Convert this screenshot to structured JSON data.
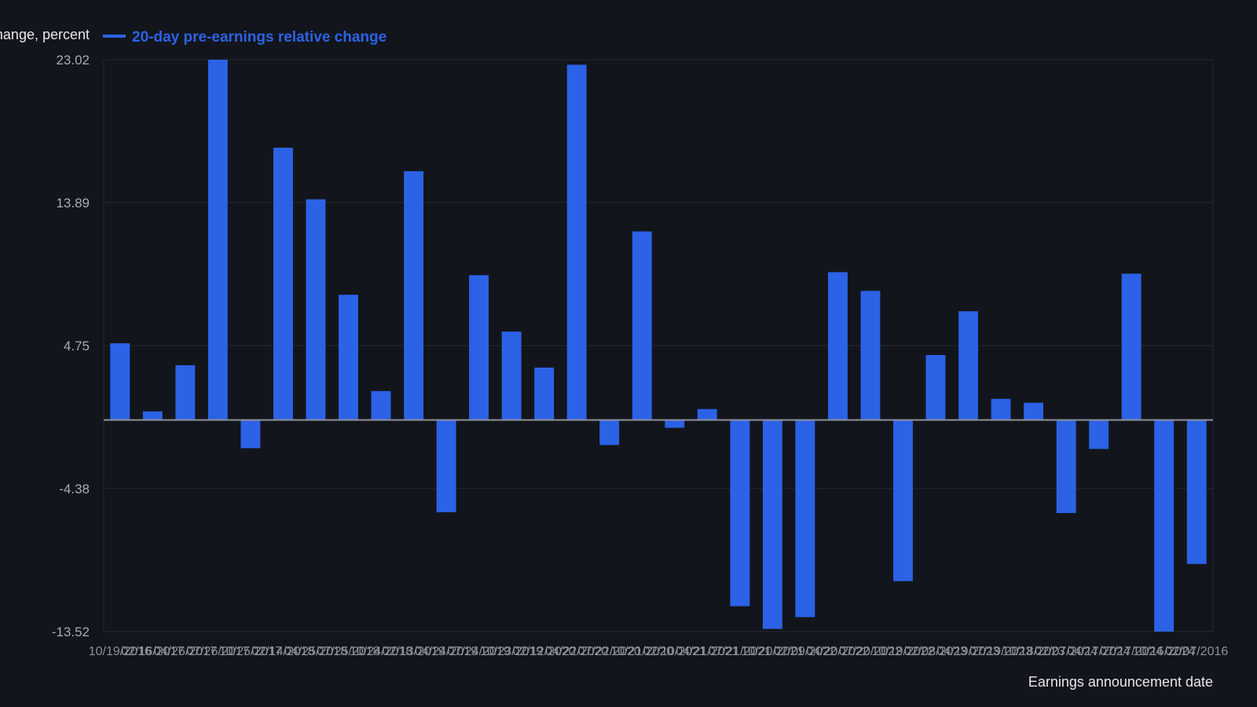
{
  "chart_data": {
    "type": "bar",
    "ylabel": "Change, percent",
    "xlabel": "Earnings announcement date",
    "y_ticks": [
      "23.02",
      "13.89",
      "4.75",
      "-4.38",
      "-13.52"
    ],
    "ylim": [
      -13.52,
      23.02
    ],
    "legend_position": "top-left",
    "grid": true,
    "series": [
      {
        "name": "20-day pre-earnings relative change",
        "color": "#2c62e6",
        "values": [
          4.9,
          0.55,
          3.5,
          23.02,
          -1.8,
          17.4,
          14.1,
          8.0,
          1.85,
          15.9,
          -5.9,
          9.25,
          5.65,
          3.35,
          22.7,
          -1.6,
          12.05,
          -0.5,
          0.7,
          -11.9,
          -13.35,
          -12.6,
          9.45,
          8.25,
          -10.3,
          4.15,
          6.95,
          1.35,
          1.1,
          -5.95,
          -1.85,
          9.35,
          -13.52,
          -9.2
        ]
      }
    ],
    "x_tick_labels": [
      "10/19/2016",
      "02/16/2017",
      "04/26/2017",
      "07/26/2017",
      "10/25/2017",
      "02/14/2018",
      "04/25/2018",
      "07/25/2018",
      "10/24/2018",
      "02/13/2019",
      "04/24/2019",
      "07/24/2019",
      "10/23/2019",
      "02/12/2020",
      "04/22/2020",
      "07/22/2020",
      "10/21/2020",
      "02/10/2021",
      "04/21/2021",
      "07/21/2021",
      "10/20/2021",
      "02/09/2022",
      "04/20/2022",
      "07/20/2022",
      "10/19/2022",
      "02/08/2023",
      "04/19/2023",
      "07/19/2023",
      "10/18/2023",
      "02/07/2024",
      "04/17/2024",
      "07/17/2024",
      "10/16/2024",
      "02/07/2016"
    ]
  }
}
